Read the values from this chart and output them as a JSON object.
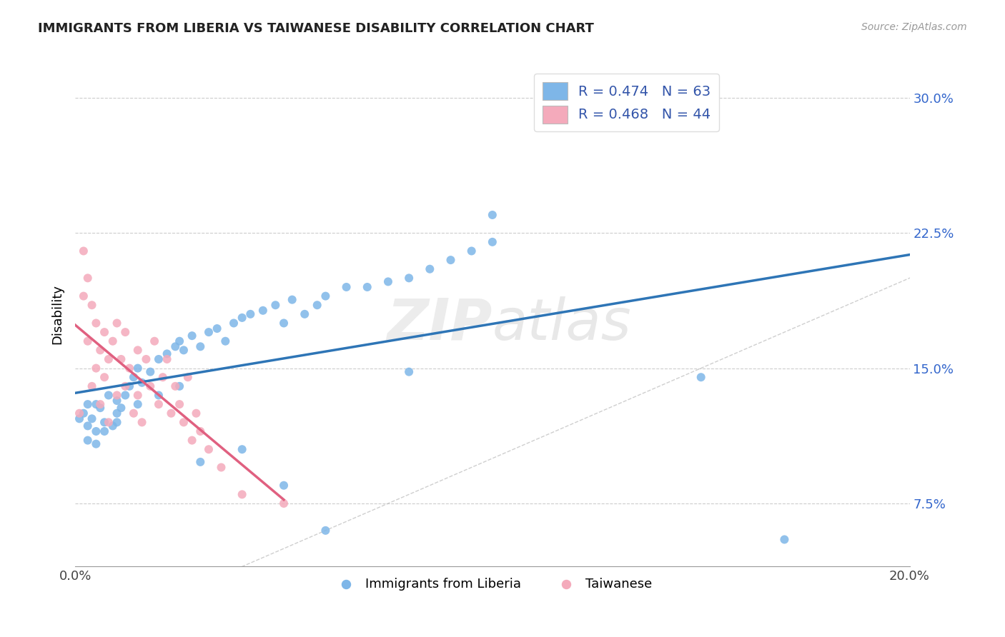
{
  "title": "IMMIGRANTS FROM LIBERIA VS TAIWANESE DISABILITY CORRELATION CHART",
  "source": "Source: ZipAtlas.com",
  "ylabel": "Disability",
  "xlim": [
    0.0,
    0.2
  ],
  "ylim": [
    0.04,
    0.32
  ],
  "ytick_values": [
    0.075,
    0.15,
    0.225,
    0.3
  ],
  "ytick_labels": [
    "7.5%",
    "15.0%",
    "22.5%",
    "30.0%"
  ],
  "legend_r1": "R = 0.474",
  "legend_n1": "N = 63",
  "legend_r2": "R = 0.468",
  "legend_n2": "N = 44",
  "color_blue": "#7EB6E8",
  "color_pink": "#F4AABB",
  "color_line_blue": "#2E75B6",
  "color_line_pink": "#E06080",
  "color_dashed": "#BBBBBB",
  "watermark": "ZIPatlas",
  "liberia_x": [
    0.001,
    0.002,
    0.003,
    0.003,
    0.004,
    0.005,
    0.005,
    0.006,
    0.007,
    0.008,
    0.009,
    0.01,
    0.01,
    0.011,
    0.012,
    0.013,
    0.014,
    0.015,
    0.016,
    0.018,
    0.02,
    0.022,
    0.024,
    0.025,
    0.026,
    0.028,
    0.03,
    0.032,
    0.034,
    0.036,
    0.038,
    0.04,
    0.042,
    0.045,
    0.048,
    0.05,
    0.052,
    0.055,
    0.058,
    0.06,
    0.065,
    0.07,
    0.075,
    0.08,
    0.085,
    0.09,
    0.095,
    0.1,
    0.003,
    0.005,
    0.007,
    0.01,
    0.015,
    0.02,
    0.025,
    0.03,
    0.04,
    0.05,
    0.06,
    0.08,
    0.1,
    0.15,
    0.17
  ],
  "liberia_y": [
    0.122,
    0.125,
    0.118,
    0.13,
    0.122,
    0.13,
    0.115,
    0.128,
    0.12,
    0.135,
    0.118,
    0.125,
    0.132,
    0.128,
    0.135,
    0.14,
    0.145,
    0.15,
    0.142,
    0.148,
    0.155,
    0.158,
    0.162,
    0.165,
    0.16,
    0.168,
    0.162,
    0.17,
    0.172,
    0.165,
    0.175,
    0.178,
    0.18,
    0.182,
    0.185,
    0.175,
    0.188,
    0.18,
    0.185,
    0.19,
    0.195,
    0.195,
    0.198,
    0.2,
    0.205,
    0.21,
    0.215,
    0.22,
    0.11,
    0.108,
    0.115,
    0.12,
    0.13,
    0.135,
    0.14,
    0.098,
    0.105,
    0.085,
    0.06,
    0.148,
    0.235,
    0.145,
    0.055
  ],
  "taiwanese_x": [
    0.001,
    0.002,
    0.002,
    0.003,
    0.003,
    0.004,
    0.004,
    0.005,
    0.005,
    0.006,
    0.006,
    0.007,
    0.007,
    0.008,
    0.008,
    0.009,
    0.01,
    0.01,
    0.011,
    0.012,
    0.012,
    0.013,
    0.014,
    0.015,
    0.015,
    0.016,
    0.017,
    0.018,
    0.019,
    0.02,
    0.021,
    0.022,
    0.023,
    0.024,
    0.025,
    0.026,
    0.027,
    0.028,
    0.029,
    0.03,
    0.032,
    0.035,
    0.04,
    0.05
  ],
  "taiwanese_y": [
    0.125,
    0.19,
    0.215,
    0.165,
    0.2,
    0.14,
    0.185,
    0.15,
    0.175,
    0.13,
    0.16,
    0.145,
    0.17,
    0.12,
    0.155,
    0.165,
    0.135,
    0.175,
    0.155,
    0.14,
    0.17,
    0.15,
    0.125,
    0.16,
    0.135,
    0.12,
    0.155,
    0.14,
    0.165,
    0.13,
    0.145,
    0.155,
    0.125,
    0.14,
    0.13,
    0.12,
    0.145,
    0.11,
    0.125,
    0.115,
    0.105,
    0.095,
    0.08,
    0.075
  ]
}
